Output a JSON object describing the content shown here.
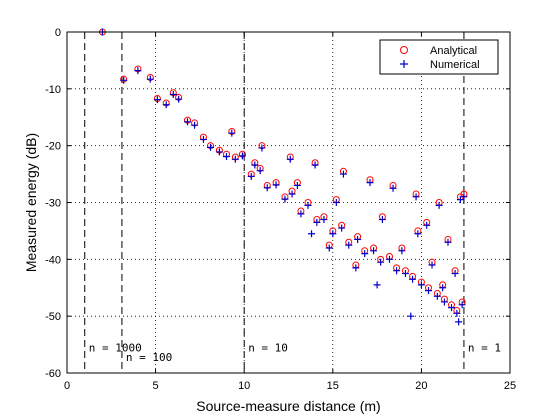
{
  "chart_data": {
    "type": "scatter",
    "title": "",
    "xlabel": "Source-measure distance (m)",
    "ylabel": "Measured energy (dB)",
    "xlim": [
      0,
      25
    ],
    "ylim": [
      -60,
      0
    ],
    "xticks": [
      0,
      5,
      10,
      15,
      20,
      25
    ],
    "yticks": [
      0,
      -10,
      -20,
      -30,
      -40,
      -50,
      -60
    ],
    "grid": "dotted",
    "legend": "top-right",
    "colors": {
      "analytical": "#ff0000",
      "numerical": "#0000cc",
      "frame": "#000000"
    },
    "series": [
      {
        "name": "Analytical",
        "marker": "circle",
        "points": [
          [
            2.0,
            0.0
          ],
          [
            3.2,
            -8.3
          ],
          [
            4.0,
            -6.5
          ],
          [
            4.7,
            -8.0
          ],
          [
            5.1,
            -11.7
          ],
          [
            5.6,
            -12.5
          ],
          [
            6.0,
            -10.7
          ],
          [
            6.3,
            -11.5
          ],
          [
            6.8,
            -15.5
          ],
          [
            7.2,
            -16.0
          ],
          [
            7.7,
            -18.5
          ],
          [
            8.1,
            -20.0
          ],
          [
            8.6,
            -20.8
          ],
          [
            9.0,
            -21.5
          ],
          [
            9.5,
            -22.0
          ],
          [
            9.9,
            -21.5
          ],
          [
            10.4,
            -25.0
          ],
          [
            10.9,
            -24.0
          ],
          [
            11.3,
            -27.0
          ],
          [
            11.8,
            -26.5
          ],
          [
            12.3,
            -29.0
          ],
          [
            12.7,
            -28.0
          ],
          [
            13.2,
            -31.5
          ],
          [
            13.6,
            -30.0
          ],
          [
            14.1,
            -33.0
          ],
          [
            14.5,
            -32.5
          ],
          [
            15.0,
            -35.0
          ],
          [
            15.5,
            -34.0
          ],
          [
            15.9,
            -37.0
          ],
          [
            16.4,
            -36.0
          ],
          [
            16.8,
            -38.5
          ],
          [
            17.3,
            -38.0
          ],
          [
            17.7,
            -40.0
          ],
          [
            18.2,
            -39.5
          ],
          [
            18.6,
            -41.5
          ],
          [
            19.1,
            -42.0
          ],
          [
            19.5,
            -43.0
          ],
          [
            20.0,
            -44.0
          ],
          [
            20.4,
            -45.0
          ],
          [
            20.9,
            -46.0
          ],
          [
            21.3,
            -47.0
          ],
          [
            21.7,
            -48.0
          ],
          [
            22.0,
            -49.0
          ],
          [
            22.3,
            -47.5
          ],
          [
            9.3,
            -17.5
          ],
          [
            11.0,
            -20.0
          ],
          [
            12.6,
            -22.0
          ],
          [
            14.0,
            -23.0
          ],
          [
            15.6,
            -24.5
          ],
          [
            17.1,
            -26.0
          ],
          [
            18.4,
            -27.0
          ],
          [
            19.7,
            -28.5
          ],
          [
            21.0,
            -30.0
          ],
          [
            22.2,
            -29.0
          ],
          [
            13.0,
            -26.5
          ],
          [
            15.2,
            -29.5
          ],
          [
            17.8,
            -32.5
          ],
          [
            19.8,
            -35.0
          ],
          [
            21.5,
            -36.5
          ],
          [
            16.3,
            -41.0
          ],
          [
            18.9,
            -38.0
          ],
          [
            20.6,
            -40.5
          ],
          [
            21.9,
            -42.0
          ],
          [
            14.8,
            -37.5
          ],
          [
            10.6,
            -23.0
          ],
          [
            20.3,
            -33.5
          ],
          [
            21.2,
            -44.5
          ],
          [
            22.4,
            -28.5
          ]
        ]
      },
      {
        "name": "Numerical",
        "marker": "plus",
        "points": [
          [
            2.0,
            0.0
          ],
          [
            3.2,
            -8.5
          ],
          [
            4.0,
            -6.8
          ],
          [
            4.7,
            -8.3
          ],
          [
            5.1,
            -11.9
          ],
          [
            5.6,
            -12.8
          ],
          [
            6.0,
            -11.0
          ],
          [
            6.3,
            -11.8
          ],
          [
            6.8,
            -15.8
          ],
          [
            7.2,
            -16.4
          ],
          [
            7.7,
            -18.9
          ],
          [
            8.1,
            -20.3
          ],
          [
            8.6,
            -21.1
          ],
          [
            9.0,
            -21.9
          ],
          [
            9.5,
            -22.4
          ],
          [
            9.9,
            -21.8
          ],
          [
            10.4,
            -25.4
          ],
          [
            10.9,
            -24.4
          ],
          [
            11.3,
            -27.4
          ],
          [
            11.8,
            -26.9
          ],
          [
            12.3,
            -29.4
          ],
          [
            12.7,
            -28.5
          ],
          [
            13.2,
            -32.0
          ],
          [
            13.6,
            -30.5
          ],
          [
            14.1,
            -33.5
          ],
          [
            14.5,
            -33.0
          ],
          [
            15.0,
            -35.5
          ],
          [
            15.5,
            -34.5
          ],
          [
            15.9,
            -37.5
          ],
          [
            16.4,
            -36.5
          ],
          [
            16.8,
            -39.0
          ],
          [
            17.3,
            -38.5
          ],
          [
            17.7,
            -40.5
          ],
          [
            18.2,
            -40.0
          ],
          [
            18.6,
            -42.0
          ],
          [
            19.1,
            -42.5
          ],
          [
            19.5,
            -43.5
          ],
          [
            20.0,
            -44.5
          ],
          [
            20.4,
            -45.5
          ],
          [
            20.9,
            -46.5
          ],
          [
            21.3,
            -47.5
          ],
          [
            21.7,
            -48.5
          ],
          [
            22.0,
            -49.5
          ],
          [
            22.3,
            -48.0
          ],
          [
            9.3,
            -17.8
          ],
          [
            11.0,
            -20.4
          ],
          [
            12.6,
            -22.4
          ],
          [
            14.0,
            -23.4
          ],
          [
            15.6,
            -25.0
          ],
          [
            17.1,
            -26.5
          ],
          [
            18.4,
            -27.5
          ],
          [
            19.7,
            -29.0
          ],
          [
            21.0,
            -30.5
          ],
          [
            22.2,
            -29.5
          ],
          [
            13.0,
            -27.0
          ],
          [
            15.2,
            -30.0
          ],
          [
            17.8,
            -33.0
          ],
          [
            19.8,
            -35.5
          ],
          [
            21.5,
            -37.0
          ],
          [
            16.3,
            -41.5
          ],
          [
            18.9,
            -38.5
          ],
          [
            20.6,
            -41.0
          ],
          [
            21.9,
            -42.5
          ],
          [
            14.8,
            -38.0
          ],
          [
            10.6,
            -23.4
          ],
          [
            20.3,
            -34.0
          ],
          [
            21.2,
            -45.0
          ],
          [
            22.4,
            -29.0
          ],
          [
            19.4,
            -50.0
          ],
          [
            22.1,
            -51.0
          ],
          [
            17.5,
            -44.5
          ],
          [
            13.8,
            -35.5
          ]
        ]
      }
    ],
    "threshold_lines": [
      {
        "x": 1.0,
        "label": "n = 1000",
        "label_y": -55.5
      },
      {
        "x": 3.1,
        "label": "n = 100",
        "label_y": -57.2
      },
      {
        "x": 10.0,
        "label": "n = 10",
        "label_y": -55.5
      },
      {
        "x": 22.4,
        "label": "n = 1",
        "label_y": -55.5
      }
    ]
  }
}
